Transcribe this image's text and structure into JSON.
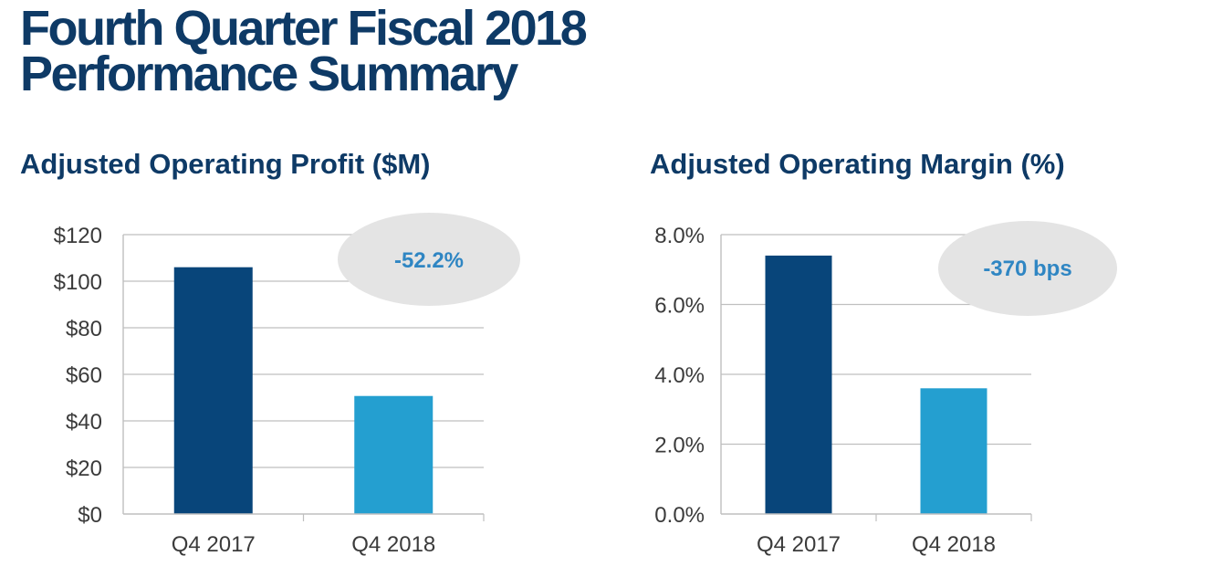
{
  "slide": {
    "title_line1": "Fourth Quarter Fiscal 2018",
    "title_line2": "Performance Summary"
  },
  "colors": {
    "title": "#0e3a66",
    "bar_2017": "#08457a",
    "bar_2018": "#249fd0",
    "callout_fill": "#e4e4e4",
    "callout_text": "#2f86c3",
    "grid": "#bfbfbf"
  },
  "chart_data": [
    {
      "type": "bar",
      "title": "Adjusted Operating Profit ($M)",
      "categories": [
        "Q4 2017",
        "Q4 2018"
      ],
      "values": [
        106,
        50.7
      ],
      "ylim": [
        0,
        120
      ],
      "yticks": [
        0,
        20,
        40,
        60,
        80,
        100,
        120
      ],
      "ytick_labels": [
        "$0",
        "$20",
        "$40",
        "$60",
        "$80",
        "$100",
        "$120"
      ],
      "grid": true,
      "annotation": "-52.2%"
    },
    {
      "type": "bar",
      "title": "Adjusted Operating Margin (%)",
      "categories": [
        "Q4 2017",
        "Q4 2018"
      ],
      "values": [
        7.4,
        3.6
      ],
      "ylim": [
        0,
        8
      ],
      "yticks": [
        0,
        2,
        4,
        6,
        8
      ],
      "ytick_labels": [
        "0.0%",
        "2.0%",
        "4.0%",
        "6.0%",
        "8.0%"
      ],
      "grid": true,
      "annotation": "-370 bps"
    }
  ]
}
